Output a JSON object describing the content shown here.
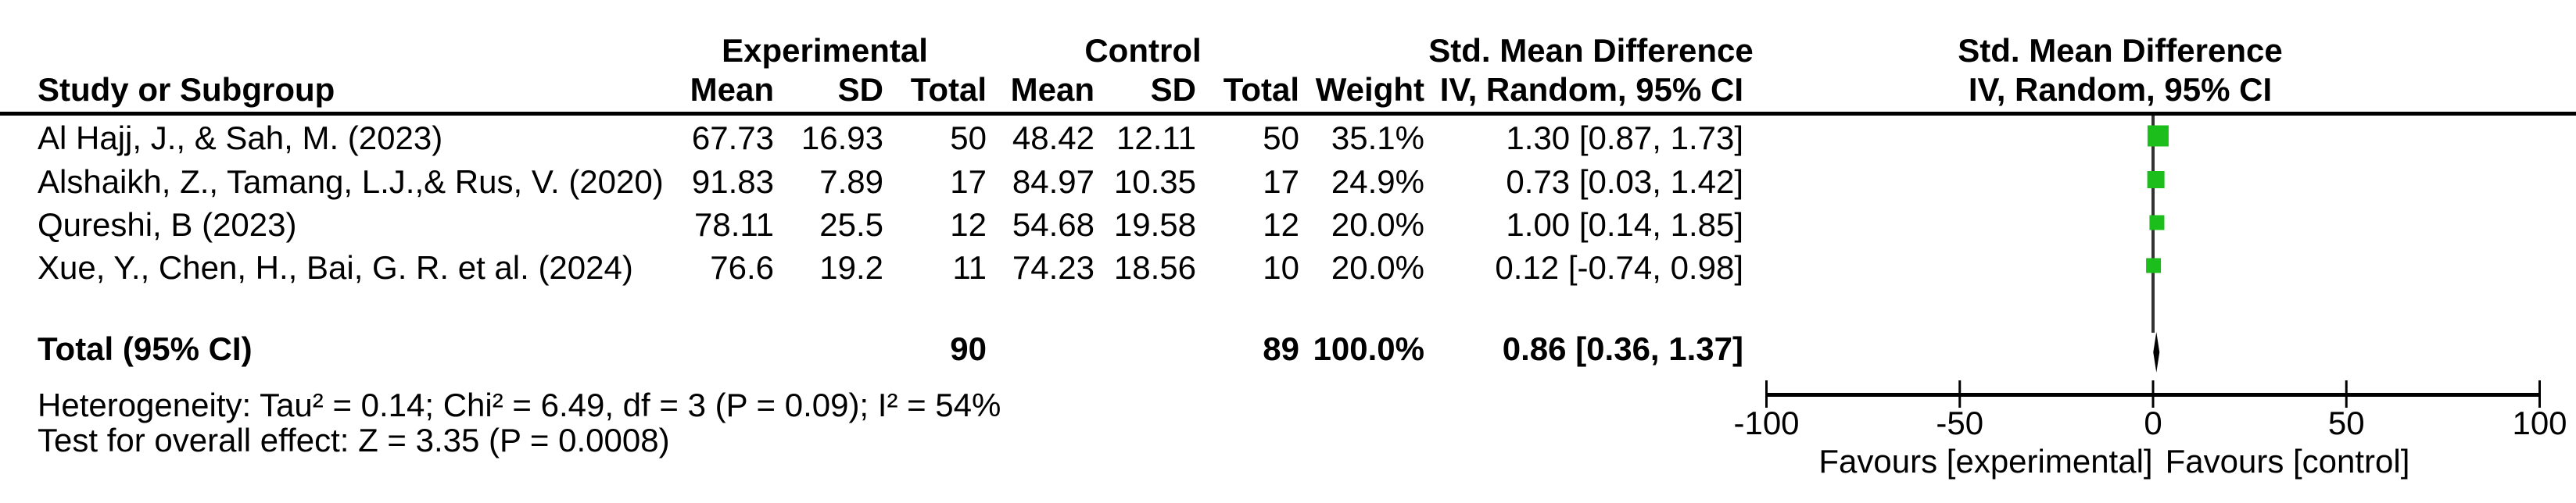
{
  "headers": {
    "study": "Study or Subgroup",
    "experimental_group": "Experimental",
    "control_group": "Control",
    "mean": "Mean",
    "sd": "SD",
    "total": "Total",
    "weight": "Weight",
    "smd_table": "Std. Mean Difference",
    "method_table": "IV, Random, 95% CI",
    "smd_plot": "Std. Mean Difference",
    "method_plot": "IV, Random, 95% CI"
  },
  "studies": [
    {
      "label": "Al Hajj, J., & Sah, M. (2023)",
      "mean_e": "67.73",
      "sd_e": "16.93",
      "total_e": "50",
      "mean_c": "48.42",
      "sd_c": "12.11",
      "total_c": "50",
      "weight": "35.1%",
      "weight_pct": 35.1,
      "ci_text": "1.30 [0.87, 1.73]",
      "smd": 1.3,
      "ci_low": 0.87,
      "ci_high": 1.73
    },
    {
      "label": "Alshaikh, Z., Tamang, L.J.,& Rus, V. (2020)",
      "mean_e": "91.83",
      "sd_e": "7.89",
      "total_e": "17",
      "mean_c": "84.97",
      "sd_c": "10.35",
      "total_c": "17",
      "weight": "24.9%",
      "weight_pct": 24.9,
      "ci_text": "0.73 [0.03, 1.42]",
      "smd": 0.73,
      "ci_low": 0.03,
      "ci_high": 1.42
    },
    {
      "label": "Qureshi, B (2023)",
      "mean_e": "78.11",
      "sd_e": "25.5",
      "total_e": "12",
      "mean_c": "54.68",
      "sd_c": "19.58",
      "total_c": "12",
      "weight": "20.0%",
      "weight_pct": 20.0,
      "ci_text": "1.00 [0.14, 1.85]",
      "smd": 1.0,
      "ci_low": 0.14,
      "ci_high": 1.85
    },
    {
      "label": "Xue, Y., Chen, H., Bai, G. R. et al. (2024)",
      "mean_e": "76.6",
      "sd_e": "19.2",
      "total_e": "11",
      "mean_c": "74.23",
      "sd_c": "18.56",
      "total_c": "10",
      "weight": "20.0%",
      "weight_pct": 20.0,
      "ci_text": "0.12 [-0.74, 0.98]",
      "smd": 0.12,
      "ci_low": -0.74,
      "ci_high": 0.98
    }
  ],
  "total_row": {
    "label": "Total (95% CI)",
    "total_e": "90",
    "total_c": "89",
    "weight": "100.0%",
    "ci_text": "0.86 [0.36, 1.37]",
    "smd": 0.86,
    "ci_low": 0.36,
    "ci_high": 1.37
  },
  "footnotes": {
    "heterogeneity": "Heterogeneity: Tau² = 0.14; Chi² = 6.49, df = 3 (P = 0.09); I² = 54%",
    "overall_effect": "Test for overall effect: Z = 3.35 (P = 0.0008)"
  },
  "axis": {
    "tick_labels": [
      "-100",
      "-50",
      "0",
      "50",
      "100"
    ],
    "tick_values": [
      -100,
      -50,
      0,
      50,
      100
    ],
    "min": -100,
    "max": 100,
    "favours_left": "Favours [experimental]",
    "favours_right": "Favours [control]"
  },
  "colors": {
    "square_green": "#1cbe1c",
    "line_dark": "#333333",
    "ink_black": "#000000"
  },
  "chart_data": {
    "type": "forest",
    "title": "Std. Mean Difference  IV, Random, 95% CI",
    "effect_measure": "Std. Mean Difference",
    "model": "IV, Random, 95% CI",
    "x_axis": {
      "min": -100,
      "max": 100,
      "ticks": [
        -100,
        -50,
        0,
        50,
        100
      ],
      "label_left": "Favours [experimental]",
      "label_right": "Favours [control]"
    },
    "studies": [
      {
        "name": "Al Hajj, J., & Sah, M. (2023)",
        "mean_exp": 67.73,
        "sd_exp": 16.93,
        "n_exp": 50,
        "mean_ctl": 48.42,
        "sd_ctl": 12.11,
        "n_ctl": 50,
        "weight_pct": 35.1,
        "smd": 1.3,
        "ci": [
          0.87,
          1.73
        ]
      },
      {
        "name": "Alshaikh, Z., Tamang, L.J.,& Rus, V. (2020)",
        "mean_exp": 91.83,
        "sd_exp": 7.89,
        "n_exp": 17,
        "mean_ctl": 84.97,
        "sd_ctl": 10.35,
        "n_ctl": 17,
        "weight_pct": 24.9,
        "smd": 0.73,
        "ci": [
          0.03,
          1.42
        ]
      },
      {
        "name": "Qureshi, B (2023)",
        "mean_exp": 78.11,
        "sd_exp": 25.5,
        "n_exp": 12,
        "mean_ctl": 54.68,
        "sd_ctl": 19.58,
        "n_ctl": 12,
        "weight_pct": 20.0,
        "smd": 1.0,
        "ci": [
          0.14,
          1.85
        ]
      },
      {
        "name": "Xue, Y., Chen, H., Bai, G. R. et al. (2024)",
        "mean_exp": 76.6,
        "sd_exp": 19.2,
        "n_exp": 11,
        "mean_ctl": 74.23,
        "sd_ctl": 18.56,
        "n_ctl": 10,
        "weight_pct": 20.0,
        "smd": 0.12,
        "ci": [
          -0.74,
          0.98
        ]
      }
    ],
    "total": {
      "n_exp": 90,
      "n_ctl": 89,
      "weight_pct": 100.0,
      "smd": 0.86,
      "ci": [
        0.36,
        1.37
      ]
    },
    "heterogeneity": {
      "tau2": 0.14,
      "chi2": 6.49,
      "df": 3,
      "p": 0.09,
      "i2_pct": 54
    },
    "overall_effect": {
      "z": 3.35,
      "p": 0.0008
    }
  }
}
